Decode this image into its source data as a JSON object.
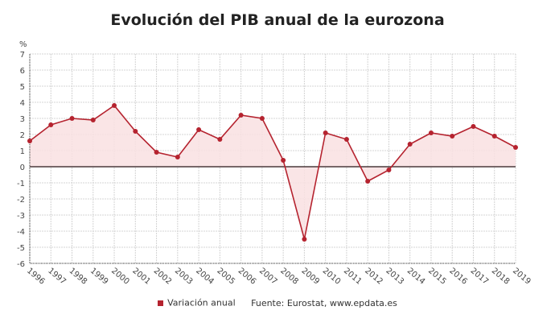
{
  "chart_data": {
    "type": "area",
    "title": "Evolución del PIB anual de la eurozona",
    "ylabel": "%",
    "categories": [
      "1996",
      "1997",
      "1998",
      "1999",
      "2000",
      "2001",
      "2002",
      "2003",
      "2004",
      "2005",
      "2006",
      "2007",
      "2008",
      "2009",
      "2010",
      "2011",
      "2012",
      "2013",
      "2014",
      "2015",
      "2016",
      "2017",
      "2018",
      "2019"
    ],
    "series": [
      {
        "name": "Variación anual",
        "values": [
          1.6,
          2.6,
          3.0,
          2.9,
          3.8,
          2.2,
          0.9,
          0.6,
          2.3,
          1.7,
          3.2,
          3.0,
          0.4,
          -4.5,
          2.1,
          1.7,
          -0.9,
          -0.2,
          1.4,
          2.1,
          1.9,
          2.5,
          1.9,
          1.2
        ]
      }
    ],
    "ylim": [
      -6,
      7
    ],
    "yticks": [
      "7",
      "6",
      "5",
      "4",
      "3",
      "2",
      "1",
      "0",
      "-1",
      "-2",
      "-3",
      "-4",
      "-5",
      "-6"
    ],
    "grid": true,
    "legend": "bottom",
    "colors": {
      "line": "#b5232f",
      "fill": "#f9e0e2",
      "zero_line": "#4a3a3c"
    }
  },
  "source": "Fuente: Eurostat, www.epdata.es"
}
